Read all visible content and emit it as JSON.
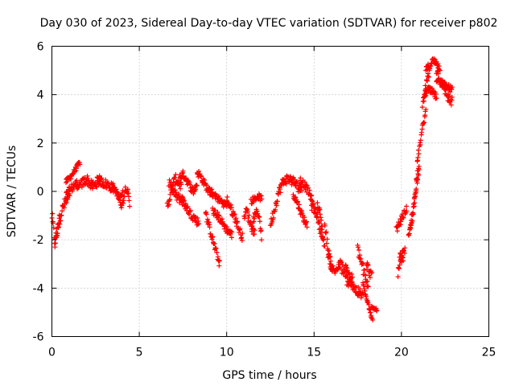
{
  "chart_data": {
    "type": "scatter",
    "title": "Day 030 of 2023, Sidereal Day-to-day VTEC variation (SDTVAR) for receiver p802",
    "xlabel": "GPS time / hours",
    "ylabel": "SDTVAR / TECUs",
    "xlim": [
      0,
      25
    ],
    "ylim": [
      -6,
      6
    ],
    "xticks": [
      0,
      5,
      10,
      15,
      20,
      25
    ],
    "yticks": [
      -6,
      -4,
      -2,
      0,
      2,
      4,
      6
    ],
    "grid": true,
    "marker": "+",
    "color": "#ff0000",
    "segments": [
      {
        "t0": 0.0,
        "t1": 0.45,
        "y": [
          -1.0,
          -1.6,
          -2.2,
          -1.8,
          -1.4,
          -1.0
        ],
        "band": 0.5
      },
      {
        "t0": 0.2,
        "t1": 1.0,
        "y": [
          -2.0,
          -1.4,
          -0.9,
          -0.6,
          -0.4,
          -0.2
        ],
        "band": 0.5
      },
      {
        "t0": 0.8,
        "t1": 1.6,
        "y": [
          -0.2,
          0.0,
          0.2,
          0.3,
          0.3
        ],
        "band": 0.4
      },
      {
        "t0": 0.8,
        "t1": 1.6,
        "y": [
          0.4,
          0.6,
          0.9,
          1.2
        ],
        "band": 0.2
      },
      {
        "t0": 1.6,
        "t1": 2.8,
        "y": [
          0.2,
          0.4,
          0.5,
          0.3,
          0.2,
          0.4,
          0.5
        ],
        "band": 0.4
      },
      {
        "t0": 2.6,
        "t1": 3.6,
        "y": [
          0.5,
          0.4,
          0.3,
          0.2,
          0.1
        ],
        "band": 0.4
      },
      {
        "t0": 3.4,
        "t1": 4.05,
        "y": [
          0.2,
          0.0,
          -0.2,
          -0.1
        ],
        "band": 0.3
      },
      {
        "t0": 3.9,
        "t1": 4.45,
        "y": [
          -0.4,
          -0.6,
          -0.2,
          0.2,
          0.0,
          -0.6
        ],
        "band": 0.3
      },
      {
        "t0": 6.6,
        "t1": 7.4,
        "y": [
          -0.6,
          -0.2,
          0.3,
          0.5,
          0.4,
          0.2
        ],
        "band": 0.4
      },
      {
        "t0": 6.7,
        "t1": 7.5,
        "y": [
          0.3,
          0.1,
          -0.2,
          -0.3,
          -0.4
        ],
        "band": 0.4
      },
      {
        "t0": 7.3,
        "t1": 8.3,
        "y": [
          0.6,
          0.7,
          0.5,
          0.2,
          0.0,
          0.3
        ],
        "band": 0.3
      },
      {
        "t0": 7.4,
        "t1": 8.4,
        "y": [
          -0.3,
          -0.6,
          -0.9,
          -1.1,
          -1.3
        ],
        "band": 0.35
      },
      {
        "t0": 8.3,
        "t1": 9.2,
        "y": [
          0.8,
          0.6,
          0.3,
          0.0,
          -0.1
        ],
        "band": 0.3
      },
      {
        "t0": 8.8,
        "t1": 9.6,
        "y": [
          -0.9,
          -1.5,
          -2.0,
          -2.5,
          -3.0
        ],
        "band": 0.3
      },
      {
        "t0": 9.0,
        "t1": 10.0,
        "y": [
          0.1,
          -0.2,
          -0.4,
          -0.6
        ],
        "band": 0.3
      },
      {
        "t0": 9.2,
        "t1": 10.3,
        "y": [
          -0.8,
          -1.0,
          -1.3,
          -1.6,
          -1.8
        ],
        "band": 0.3
      },
      {
        "t0": 10.0,
        "t1": 10.9,
        "y": [
          -0.3,
          -0.6,
          -0.9,
          -1.2,
          -1.6,
          -1.9
        ],
        "band": 0.35
      },
      {
        "t0": 11.0,
        "t1": 11.6,
        "y": [
          -1.0,
          -0.8,
          -1.2,
          -1.5,
          -1.7
        ],
        "band": 0.35
      },
      {
        "t0": 11.4,
        "t1": 12.0,
        "y": [
          -0.4,
          -0.3,
          -0.2,
          -0.3
        ],
        "band": 0.25
      },
      {
        "t0": 11.5,
        "t1": 12.0,
        "y": [
          -1.2,
          -1.0,
          -0.8,
          -1.1,
          -1.9
        ],
        "band": 0.3
      },
      {
        "t0": 12.5,
        "t1": 13.6,
        "y": [
          -1.4,
          -0.8,
          -0.1,
          0.3,
          0.5,
          0.5
        ],
        "band": 0.4
      },
      {
        "t0": 13.6,
        "t1": 14.3,
        "y": [
          0.5,
          0.4,
          0.2,
          0.1
        ],
        "band": 0.4
      },
      {
        "t0": 13.8,
        "t1": 14.6,
        "y": [
          -0.1,
          -0.5,
          -1.0,
          -1.4
        ],
        "band": 0.3
      },
      {
        "t0": 14.2,
        "t1": 14.9,
        "y": [
          0.5,
          0.3,
          0.0,
          -0.3
        ],
        "band": 0.3
      },
      {
        "t0": 14.8,
        "t1": 15.5,
        "y": [
          -0.5,
          -0.7,
          -0.9,
          -1.5,
          -1.8
        ],
        "band": 0.4
      },
      {
        "t0": 15.2,
        "t1": 15.6,
        "y": [
          -0.6,
          -0.8,
          -1.2,
          -1.9,
          -2.2
        ],
        "band": 0.35
      },
      {
        "t0": 15.6,
        "t1": 16.0,
        "y": [
          -1.4,
          -2.0,
          -2.7,
          -3.1
        ],
        "band": 0.4
      },
      {
        "t0": 15.8,
        "t1": 16.5,
        "y": [
          -2.6,
          -3.1,
          -3.3,
          -3.2,
          -3.0
        ],
        "band": 0.35
      },
      {
        "t0": 16.5,
        "t1": 17.2,
        "y": [
          -3.0,
          -3.4,
          -3.8,
          -3.5
        ],
        "band": 0.5
      },
      {
        "t0": 16.8,
        "t1": 17.8,
        "y": [
          -3.2,
          -3.6,
          -4.0,
          -4.2,
          -4.3
        ],
        "band": 0.45
      },
      {
        "t0": 17.5,
        "t1": 18.1,
        "y": [
          -2.4,
          -2.9,
          -3.5,
          -4.0
        ],
        "band": 0.45
      },
      {
        "t0": 17.8,
        "t1": 18.35,
        "y": [
          -3.8,
          -4.3,
          -4.8,
          -5.4
        ],
        "band": 0.25
      },
      {
        "t0": 18.0,
        "t1": 18.3,
        "y": [
          -3.0,
          -3.3,
          -3.5
        ],
        "band": 0.4
      },
      {
        "t0": 18.3,
        "t1": 18.6,
        "y": [
          -4.8,
          -4.9
        ],
        "band": 0.1
      },
      {
        "t0": 19.8,
        "t1": 20.2,
        "y": [
          -3.4,
          -3.0,
          -2.6,
          -2.4
        ],
        "band": 0.4
      },
      {
        "t0": 19.7,
        "t1": 20.3,
        "y": [
          -1.6,
          -1.3,
          -1.0,
          -0.7
        ],
        "band": 0.3
      },
      {
        "t0": 19.9,
        "t1": 20.1,
        "y": [
          -2.6,
          -2.8,
          -2.9
        ],
        "band": 0.3
      },
      {
        "t0": 20.5,
        "t1": 21.0,
        "y": [
          -1.6,
          -1.2,
          -0.8,
          -0.4,
          0.2,
          0.6,
          1.0
        ],
        "band": 0.5
      },
      {
        "t0": 20.4,
        "t1": 21.0,
        "y": [
          -1.9,
          -1.4,
          -0.9,
          -0.3,
          0.4,
          0.9
        ],
        "band": 0.3
      },
      {
        "t0": 20.9,
        "t1": 21.4,
        "y": [
          1.2,
          1.8,
          2.4,
          2.9,
          3.3
        ],
        "band": 0.3
      },
      {
        "t0": 21.2,
        "t1": 21.6,
        "y": [
          3.6,
          4.1,
          4.6,
          4.9
        ],
        "band": 0.3
      },
      {
        "t0": 21.3,
        "t1": 22.0,
        "y": [
          4.0,
          4.2,
          4.1,
          3.9
        ],
        "band": 0.3
      },
      {
        "t0": 21.4,
        "t1": 22.2,
        "y": [
          5.0,
          5.2,
          5.4,
          5.3,
          5.1
        ],
        "band": 0.3
      },
      {
        "t0": 22.0,
        "t1": 22.9,
        "y": [
          5.0,
          4.7,
          4.4,
          4.1,
          3.8,
          3.7
        ],
        "band": 0.4
      },
      {
        "t0": 22.0,
        "t1": 22.9,
        "y": [
          4.6,
          4.5,
          4.4,
          4.3,
          4.2
        ],
        "band": 0.3
      }
    ]
  }
}
